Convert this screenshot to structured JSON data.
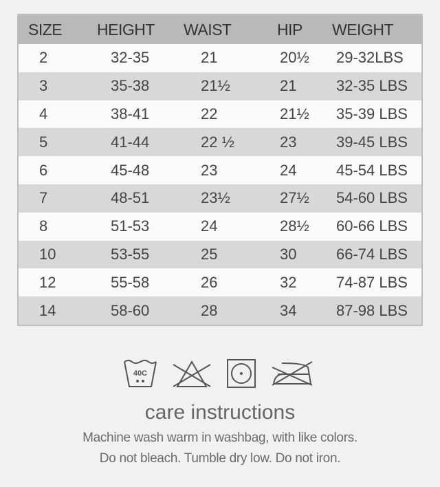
{
  "size_chart": {
    "headers": [
      "SIZE",
      "HEIGHT",
      "WAIST",
      "HIP",
      "WEIGHT"
    ],
    "rows": [
      [
        "2",
        "32-35",
        "21",
        "20½",
        "29-32LBS"
      ],
      [
        "3",
        "35-38",
        "21½",
        "21",
        "32-35 LBS"
      ],
      [
        "4",
        "38-41",
        "22",
        "21½",
        "35-39 LBS"
      ],
      [
        "5",
        "41-44",
        "22 ½",
        "23",
        "39-45 LBS"
      ],
      [
        "6",
        "45-48",
        "23",
        "24",
        "45-54 LBS"
      ],
      [
        "7",
        "48-51",
        "23½",
        "27½",
        "54-60 LBS"
      ],
      [
        "8",
        "51-53",
        "24",
        "28½",
        "60-66 LBS"
      ],
      [
        "10",
        "53-55",
        "25",
        "30",
        "66-74 LBS"
      ],
      [
        "12",
        "55-58",
        "26",
        "32",
        "74-87 LBS"
      ],
      [
        "14",
        "58-60",
        "28",
        "34",
        "87-98 LBS"
      ]
    ]
  },
  "care": {
    "icons": [
      "wash-40c-icon",
      "do-not-bleach-icon",
      "tumble-dry-low-icon",
      "do-not-iron-icon"
    ],
    "wash_temp": "40C",
    "title": "care instructions",
    "line1": "Machine wash warm in washbag, with like colors.",
    "line2": "Do not bleach. Tumble dry low. Do not iron."
  }
}
